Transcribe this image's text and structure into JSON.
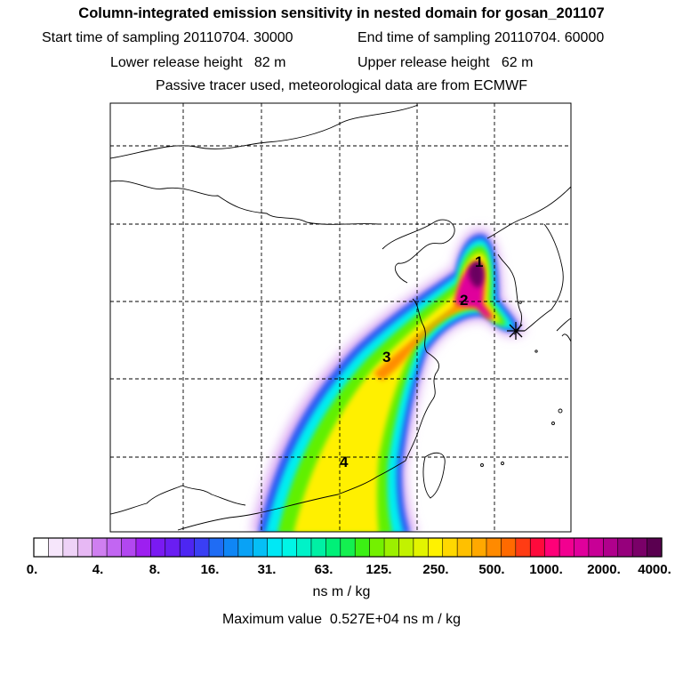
{
  "header": {
    "title": "Column-integrated emission sensitivity in nested domain for gosan_201107",
    "start_sampling": "Start time of sampling 20110704. 30000",
    "end_sampling": "End time of sampling 20110704. 60000",
    "lower_release": "Lower release height   82 m",
    "upper_release": "Upper release height   62 m",
    "tracer_info": "Passive tracer used, meteorological data are from ECMWF"
  },
  "map": {
    "station_markers": [
      {
        "label": "1"
      },
      {
        "label": "2"
      },
      {
        "label": "3"
      },
      {
        "label": "4"
      }
    ]
  },
  "colorbar": {
    "tick_labels": [
      "0.",
      "4.",
      "8.",
      "16.",
      "31.",
      "63.",
      "125.",
      "250.",
      "500.",
      "1000.",
      "2000.",
      "4000."
    ],
    "colors": [
      "#ffffff",
      "#f6e6fb",
      "#eed2f7",
      "#e7b8f4",
      "#cf7ff0",
      "#c266f2",
      "#b247f0",
      "#9d1ff0",
      "#7a1af2",
      "#6a1ef2",
      "#4d26f2",
      "#3a3ff4",
      "#1f6cf4",
      "#0f86f5",
      "#09a2f6",
      "#05bff6",
      "#00e8f5",
      "#00f5e6",
      "#00f2c8",
      "#00f0a4",
      "#00f078",
      "#14f050",
      "#3cf014",
      "#74f000",
      "#9cf000",
      "#c2f200",
      "#e2f400",
      "#fff200",
      "#ffd800",
      "#ffc000",
      "#ffa800",
      "#ff8a00",
      "#ff6a00",
      "#ff3c14",
      "#ff0a3c",
      "#ff0078",
      "#f20090",
      "#e0009c",
      "#c80096",
      "#b0008c",
      "#96007c",
      "#7a0068",
      "#5a0050"
    ],
    "unit": "ns m / kg",
    "maximum": "Maximum value  0.527E+04 ns m / kg"
  },
  "palette": {
    "background": "#ffffff",
    "plume_low": "#cf7ff0",
    "plume_blue": "#2a5af4",
    "plume_cyan": "#00eef0",
    "plume_green": "#60f000",
    "plume_yellow": "#fff000",
    "plume_orange": "#ff8c00",
    "plume_peak": "#8a0070"
  }
}
